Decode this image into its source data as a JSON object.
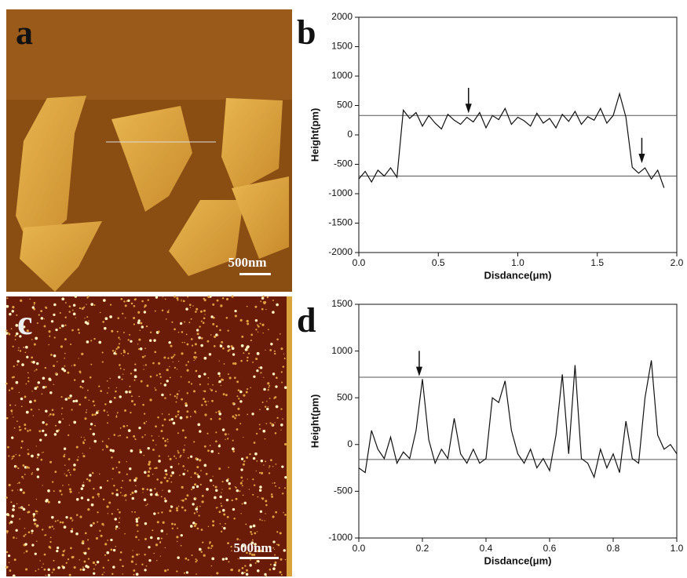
{
  "figure": {
    "panel_labels": [
      "a",
      "b",
      "c",
      "d"
    ],
    "scale_bar": "500nm"
  },
  "chart_data": [
    {
      "type": "line",
      "xlabel": "Disdance(μm)",
      "ylabel": "Height(pm)",
      "color": "#111111",
      "x": [
        0,
        0.04,
        0.08,
        0.12,
        0.16,
        0.2,
        0.24,
        0.28,
        0.32,
        0.36,
        0.4,
        0.44,
        0.48,
        0.52,
        0.56,
        0.6,
        0.64,
        0.68,
        0.72,
        0.76,
        0.8,
        0.84,
        0.88,
        0.92,
        0.96,
        1.0,
        1.04,
        1.08,
        1.12,
        1.16,
        1.2,
        1.24,
        1.28,
        1.32,
        1.36,
        1.4,
        1.44,
        1.48,
        1.52,
        1.56,
        1.6,
        1.64,
        1.68,
        1.72,
        1.76,
        1.8,
        1.84,
        1.88,
        1.92
      ],
      "values": [
        -750,
        -620,
        -800,
        -600,
        -700,
        -560,
        -720,
        420,
        280,
        380,
        150,
        330,
        200,
        100,
        350,
        250,
        180,
        300,
        220,
        380,
        120,
        330,
        260,
        450,
        180,
        300,
        240,
        150,
        370,
        200,
        280,
        120,
        350,
        230,
        400,
        180,
        310,
        250,
        450,
        200,
        330,
        700,
        300,
        -550,
        -650,
        -560,
        -750,
        -600,
        -900
      ],
      "xlim": [
        0,
        2.0
      ],
      "ylim": [
        -2000,
        2000
      ],
      "xticks": [
        {
          "value": 0,
          "label": "0.0"
        },
        0.5,
        {
          "value": 1,
          "label": "1.0"
        },
        1.5,
        {
          "value": 2,
          "label": "2.0"
        }
      ],
      "yticks": [
        -2000,
        -1500,
        -1000,
        -500,
        0,
        500,
        1000,
        1500,
        2000
      ],
      "reference_lines": [
        330,
        -700
      ],
      "arrows": [
        {
          "x": 0.69,
          "y": 400
        },
        {
          "x": 1.78,
          "y": -450
        }
      ]
    },
    {
      "type": "line",
      "xlabel": "Disdance(μm)",
      "ylabel": "Height(pm)",
      "color": "#111111",
      "x": [
        0,
        0.02,
        0.04,
        0.06,
        0.08,
        0.1,
        0.12,
        0.14,
        0.16,
        0.18,
        0.2,
        0.22,
        0.24,
        0.26,
        0.28,
        0.3,
        0.32,
        0.34,
        0.36,
        0.38,
        0.4,
        0.42,
        0.44,
        0.46,
        0.48,
        0.5,
        0.52,
        0.54,
        0.56,
        0.58,
        0.6,
        0.62,
        0.64,
        0.66,
        0.68,
        0.7,
        0.72,
        0.74,
        0.76,
        0.78,
        0.8,
        0.82,
        0.84,
        0.86,
        0.88,
        0.9,
        0.92,
        0.94,
        0.96,
        0.98,
        1.0
      ],
      "values": [
        -250,
        -300,
        150,
        -50,
        -150,
        80,
        -200,
        -80,
        -150,
        150,
        700,
        50,
        -200,
        -50,
        -150,
        280,
        -100,
        -200,
        -50,
        -200,
        -150,
        500,
        450,
        680,
        150,
        -100,
        -200,
        -50,
        -250,
        -150,
        -280,
        100,
        750,
        -100,
        850,
        -150,
        -200,
        -350,
        -50,
        -250,
        -100,
        -300,
        250,
        -150,
        -200,
        500,
        900,
        100,
        -50,
        0,
        -100
      ],
      "xlim": [
        0,
        1.0
      ],
      "ylim": [
        -1000,
        1500
      ],
      "xticks": [
        {
          "value": 0,
          "label": "0.0"
        },
        0.2,
        0.4,
        0.6,
        0.8,
        {
          "value": 1,
          "label": "1.0"
        }
      ],
      "yticks": [
        -1000,
        -500,
        0,
        500,
        1000,
        1500
      ],
      "reference_lines": [
        720,
        -160
      ],
      "arrows": [
        {
          "x": 0.19,
          "y": 750
        }
      ]
    }
  ]
}
